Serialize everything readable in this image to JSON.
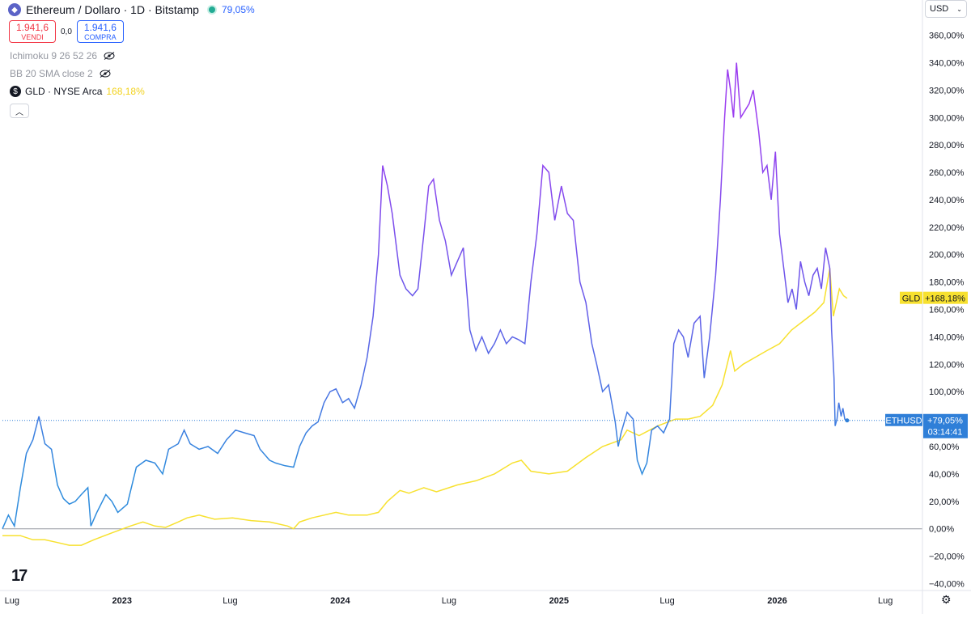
{
  "header": {
    "symbol_title": "Ethereum / Dollaro · 1D · Bitstamp",
    "change_pct": "79,05%",
    "sell_price": "1.941,6",
    "sell_label": "VENDI",
    "spread": "0,0",
    "buy_price": "1.941,6",
    "buy_label": "COMPRA",
    "currency": "USD"
  },
  "indicators": [
    {
      "label": "Ichimoku 9 26 52 26"
    },
    {
      "label": "BB 20 SMA close 2"
    }
  ],
  "compare": {
    "label": "GLD · NYSE Arca",
    "pct": "168,18%"
  },
  "colors": {
    "eth_line_low": "#2f8cdd",
    "eth_line_high": "#9b3ef0",
    "gld_line": "#f7e12f",
    "eth_badge": "#2f7fd8",
    "gld_badge": "#f7e12f"
  },
  "chart_data": {
    "type": "line",
    "y_unit": "%",
    "ylim": [
      -45,
      368
    ],
    "y_ticks": [
      "360,00%",
      "340,00%",
      "320,00%",
      "300,00%",
      "280,00%",
      "260,00%",
      "240,00%",
      "220,00%",
      "200,00%",
      "180,00%",
      "160,00%",
      "140,00%",
      "120,00%",
      "100,00%",
      "80,00%",
      "60,00%",
      "40,00%",
      "20,00%",
      "0,00%",
      "−20,00%",
      "−40,00%"
    ],
    "y_tick_values": [
      360,
      340,
      320,
      300,
      280,
      260,
      240,
      220,
      200,
      180,
      160,
      140,
      120,
      100,
      80,
      60,
      40,
      20,
      0,
      -20,
      -40
    ],
    "x_ticks": [
      "Lug",
      "2023",
      "Lug",
      "2024",
      "Lug",
      "2025",
      "Lug",
      "2026",
      "Lug"
    ],
    "x_tick_dates": [
      "2022-07",
      "2023-01",
      "2023-07",
      "2024-01",
      "2024-07",
      "2025-01",
      "2025-07",
      "2026-01",
      "2026-07"
    ],
    "series": [
      {
        "name": "ETHUSD",
        "last_label": "+79,05%",
        "countdown": "03:14:41",
        "last_value": 79.05,
        "points": [
          [
            "2022-06-15",
            0
          ],
          [
            "2022-06-25",
            10
          ],
          [
            "2022-07-05",
            2
          ],
          [
            "2022-07-15",
            30
          ],
          [
            "2022-07-25",
            55
          ],
          [
            "2022-08-05",
            65
          ],
          [
            "2022-08-15",
            82
          ],
          [
            "2022-08-25",
            62
          ],
          [
            "2022-09-05",
            58
          ],
          [
            "2022-09-15",
            32
          ],
          [
            "2022-09-25",
            22
          ],
          [
            "2022-10-05",
            18
          ],
          [
            "2022-10-15",
            20
          ],
          [
            "2022-10-25",
            25
          ],
          [
            "2022-11-05",
            30
          ],
          [
            "2022-11-10",
            2
          ],
          [
            "2022-11-20",
            12
          ],
          [
            "2022-12-05",
            25
          ],
          [
            "2022-12-15",
            20
          ],
          [
            "2022-12-25",
            12
          ],
          [
            "2023-01-10",
            18
          ],
          [
            "2023-01-25",
            45
          ],
          [
            "2023-02-10",
            50
          ],
          [
            "2023-02-25",
            48
          ],
          [
            "2023-03-10",
            40
          ],
          [
            "2023-03-20",
            58
          ],
          [
            "2023-04-05",
            62
          ],
          [
            "2023-04-15",
            72
          ],
          [
            "2023-04-25",
            62
          ],
          [
            "2023-05-10",
            58
          ],
          [
            "2023-05-25",
            60
          ],
          [
            "2023-06-10",
            55
          ],
          [
            "2023-06-25",
            65
          ],
          [
            "2023-07-10",
            72
          ],
          [
            "2023-07-25",
            70
          ],
          [
            "2023-08-10",
            68
          ],
          [
            "2023-08-20",
            58
          ],
          [
            "2023-09-05",
            50
          ],
          [
            "2023-09-15",
            48
          ],
          [
            "2023-10-01",
            46
          ],
          [
            "2023-10-15",
            45
          ],
          [
            "2023-10-25",
            60
          ],
          [
            "2023-11-05",
            70
          ],
          [
            "2023-11-15",
            75
          ],
          [
            "2023-11-25",
            78
          ],
          [
            "2023-12-05",
            92
          ],
          [
            "2023-12-15",
            100
          ],
          [
            "2023-12-25",
            102
          ],
          [
            "2024-01-05",
            92
          ],
          [
            "2024-01-15",
            95
          ],
          [
            "2024-01-25",
            88
          ],
          [
            "2024-02-05",
            105
          ],
          [
            "2024-02-15",
            125
          ],
          [
            "2024-02-25",
            155
          ],
          [
            "2024-03-05",
            200
          ],
          [
            "2024-03-12",
            265
          ],
          [
            "2024-03-20",
            250
          ],
          [
            "2024-03-28",
            230
          ],
          [
            "2024-04-10",
            185
          ],
          [
            "2024-04-20",
            175
          ],
          [
            "2024-05-01",
            170
          ],
          [
            "2024-05-10",
            175
          ],
          [
            "2024-05-20",
            215
          ],
          [
            "2024-05-28",
            250
          ],
          [
            "2024-06-05",
            255
          ],
          [
            "2024-06-15",
            225
          ],
          [
            "2024-06-25",
            210
          ],
          [
            "2024-07-05",
            185
          ],
          [
            "2024-07-15",
            195
          ],
          [
            "2024-07-25",
            205
          ],
          [
            "2024-08-05",
            145
          ],
          [
            "2024-08-15",
            130
          ],
          [
            "2024-08-25",
            140
          ],
          [
            "2024-09-05",
            128
          ],
          [
            "2024-09-15",
            135
          ],
          [
            "2024-09-25",
            145
          ],
          [
            "2024-10-05",
            135
          ],
          [
            "2024-10-15",
            140
          ],
          [
            "2024-10-25",
            138
          ],
          [
            "2024-11-05",
            135
          ],
          [
            "2024-11-15",
            180
          ],
          [
            "2024-11-25",
            215
          ],
          [
            "2024-12-05",
            265
          ],
          [
            "2024-12-15",
            260
          ],
          [
            "2024-12-25",
            225
          ],
          [
            "2025-01-05",
            250
          ],
          [
            "2025-01-15",
            230
          ],
          [
            "2025-01-25",
            225
          ],
          [
            "2025-02-05",
            180
          ],
          [
            "2025-02-15",
            165
          ],
          [
            "2025-02-25",
            135
          ],
          [
            "2025-03-05",
            120
          ],
          [
            "2025-03-15",
            100
          ],
          [
            "2025-03-25",
            105
          ],
          [
            "2025-04-05",
            78
          ],
          [
            "2025-04-10",
            60
          ],
          [
            "2025-04-15",
            70
          ],
          [
            "2025-04-25",
            85
          ],
          [
            "2025-05-05",
            80
          ],
          [
            "2025-05-12",
            50
          ],
          [
            "2025-05-20",
            40
          ],
          [
            "2025-05-28",
            48
          ],
          [
            "2025-06-05",
            72
          ],
          [
            "2025-06-15",
            75
          ],
          [
            "2025-06-25",
            70
          ],
          [
            "2025-07-05",
            80
          ],
          [
            "2025-07-12",
            135
          ],
          [
            "2025-07-20",
            145
          ],
          [
            "2025-07-28",
            140
          ],
          [
            "2025-08-05",
            125
          ],
          [
            "2025-08-15",
            150
          ],
          [
            "2025-08-25",
            155
          ],
          [
            "2025-09-01",
            110
          ],
          [
            "2025-09-10",
            140
          ],
          [
            "2025-09-20",
            185
          ],
          [
            "2025-09-28",
            240
          ],
          [
            "2025-10-05",
            300
          ],
          [
            "2025-10-10",
            335
          ],
          [
            "2025-10-15",
            320
          ],
          [
            "2025-10-20",
            300
          ],
          [
            "2025-10-25",
            340
          ],
          [
            "2025-11-01",
            300
          ],
          [
            "2025-11-08",
            305
          ],
          [
            "2025-11-15",
            310
          ],
          [
            "2025-11-22",
            320
          ],
          [
            "2025-12-01",
            290
          ],
          [
            "2025-12-08",
            260
          ],
          [
            "2025-12-15",
            265
          ],
          [
            "2025-12-22",
            240
          ],
          [
            "2025-12-29",
            275
          ],
          [
            "2026-01-05",
            215
          ],
          [
            "2026-01-12",
            190
          ],
          [
            "2026-01-19",
            165
          ],
          [
            "2026-01-26",
            175
          ],
          [
            "2026-02-02",
            160
          ],
          [
            "2026-02-09",
            195
          ],
          [
            "2026-02-16",
            180
          ],
          [
            "2026-02-23",
            170
          ],
          [
            "2026-03-02",
            185
          ],
          [
            "2026-03-09",
            190
          ],
          [
            "2026-03-16",
            175
          ],
          [
            "2026-03-23",
            205
          ],
          [
            "2026-03-30",
            190
          ],
          [
            "2026-04-02",
            145
          ],
          [
            "2026-04-06",
            110
          ],
          [
            "2026-04-08",
            75
          ],
          [
            "2026-04-11",
            80
          ],
          [
            "2026-04-14",
            92
          ],
          [
            "2026-04-18",
            82
          ],
          [
            "2026-04-21",
            88
          ],
          [
            "2026-04-24",
            80
          ],
          [
            "2026-04-28",
            79.05
          ]
        ]
      },
      {
        "name": "GLD",
        "last_label": "+168,18%",
        "last_value": 168.18,
        "points": [
          [
            "2022-06-15",
            -5
          ],
          [
            "2022-07-15",
            -5
          ],
          [
            "2022-08-05",
            -8
          ],
          [
            "2022-08-25",
            -8
          ],
          [
            "2022-09-15",
            -10
          ],
          [
            "2022-10-05",
            -12
          ],
          [
            "2022-10-25",
            -12
          ],
          [
            "2022-11-15",
            -8
          ],
          [
            "2022-12-15",
            -3
          ],
          [
            "2023-01-15",
            2
          ],
          [
            "2023-02-05",
            5
          ],
          [
            "2023-02-25",
            2
          ],
          [
            "2023-03-15",
            1
          ],
          [
            "2023-04-05",
            5
          ],
          [
            "2023-04-20",
            8
          ],
          [
            "2023-05-10",
            10
          ],
          [
            "2023-06-05",
            7
          ],
          [
            "2023-07-05",
            8
          ],
          [
            "2023-08-05",
            6
          ],
          [
            "2023-09-05",
            5
          ],
          [
            "2023-10-05",
            2
          ],
          [
            "2023-10-15",
            0
          ],
          [
            "2023-10-25",
            5
          ],
          [
            "2023-11-15",
            8
          ],
          [
            "2023-12-05",
            10
          ],
          [
            "2023-12-25",
            12
          ],
          [
            "2024-01-15",
            10
          ],
          [
            "2024-02-15",
            10
          ],
          [
            "2024-03-05",
            12
          ],
          [
            "2024-03-20",
            20
          ],
          [
            "2024-04-10",
            28
          ],
          [
            "2024-04-25",
            26
          ],
          [
            "2024-05-20",
            30
          ],
          [
            "2024-06-10",
            27
          ],
          [
            "2024-07-15",
            32
          ],
          [
            "2024-08-15",
            35
          ],
          [
            "2024-09-15",
            40
          ],
          [
            "2024-10-15",
            48
          ],
          [
            "2024-10-30",
            50
          ],
          [
            "2024-11-15",
            42
          ],
          [
            "2024-12-15",
            40
          ],
          [
            "2025-01-15",
            42
          ],
          [
            "2025-02-15",
            52
          ],
          [
            "2025-03-15",
            60
          ],
          [
            "2025-04-15",
            65
          ],
          [
            "2025-04-25",
            72
          ],
          [
            "2025-05-15",
            68
          ],
          [
            "2025-06-15",
            75
          ],
          [
            "2025-07-15",
            80
          ],
          [
            "2025-08-05",
            80
          ],
          [
            "2025-08-25",
            82
          ],
          [
            "2025-09-15",
            90
          ],
          [
            "2025-10-01",
            105
          ],
          [
            "2025-10-15",
            130
          ],
          [
            "2025-10-22",
            115
          ],
          [
            "2025-11-05",
            120
          ],
          [
            "2025-11-25",
            125
          ],
          [
            "2025-12-15",
            130
          ],
          [
            "2026-01-05",
            135
          ],
          [
            "2026-01-25",
            145
          ],
          [
            "2026-02-15",
            152
          ],
          [
            "2026-03-05",
            158
          ],
          [
            "2026-03-20",
            165
          ],
          [
            "2026-03-30",
            190
          ],
          [
            "2026-04-05",
            155
          ],
          [
            "2026-04-10",
            165
          ],
          [
            "2026-04-15",
            175
          ],
          [
            "2026-04-22",
            170
          ],
          [
            "2026-04-28",
            168.18
          ]
        ]
      }
    ]
  }
}
